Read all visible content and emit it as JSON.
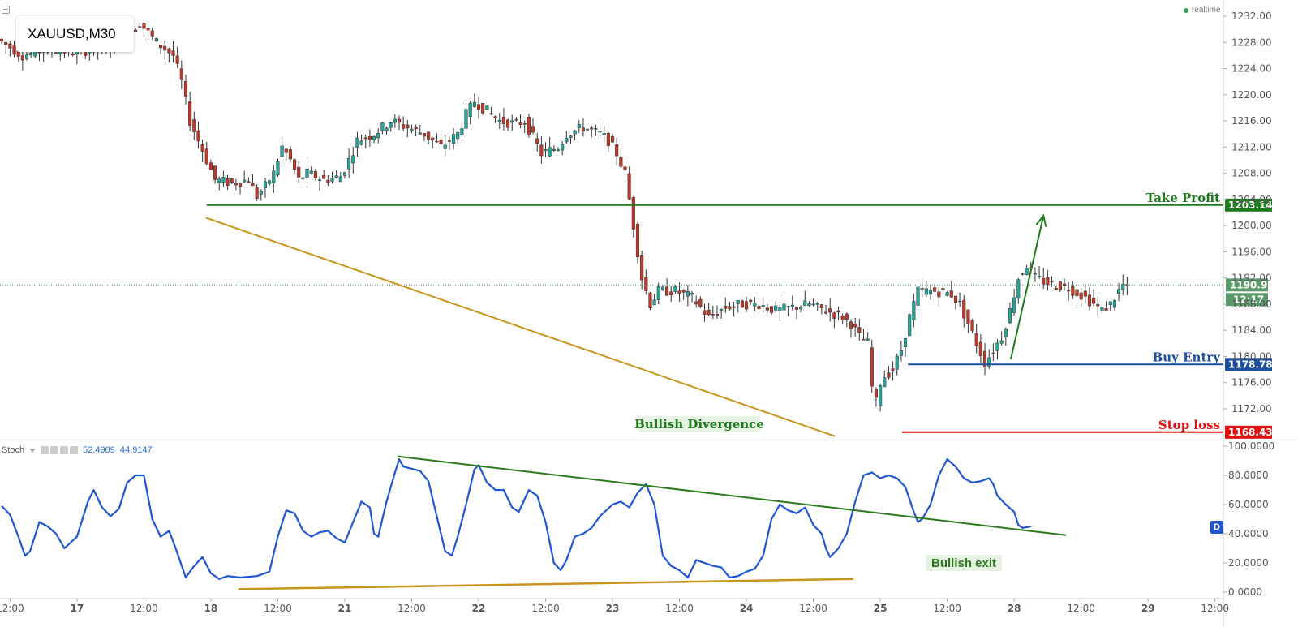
{
  "symbol": "XAUUSD,M30",
  "realtime_label": "realtime",
  "indicator": {
    "name": "Stoch",
    "values": [
      "52.4909",
      "44.9147"
    ],
    "badge": "D"
  },
  "colors": {
    "bull": "#26a69a",
    "bear": "#c0392b",
    "take_profit": "#1d7a1d",
    "buy_entry": "#1c4fa0",
    "stop_loss": "#e01010",
    "trendline": "#c8941a",
    "stoch_line": "#1f56d6",
    "stoch_trend": "#2a7a1a",
    "current_price": "#5a9a6a"
  },
  "annotations": {
    "take_profit": "Take Profit",
    "buy_entry": "Buy Entry",
    "stop_loss": "Stop loss",
    "bullish_divergence": "Bullish Divergence",
    "bullish_exit": "Bullish exit"
  },
  "chart_data": [
    {
      "type": "candlestick",
      "title": "XAUUSD,M30",
      "ylim": [
        1167,
        1234
      ],
      "y_ticks": [
        "1232.00",
        "1228.00",
        "1224.00",
        "1220.00",
        "1216.00",
        "1212.00",
        "1208.00",
        "1204.00",
        "1200.00",
        "1196.00",
        "1192.00",
        "1188.00",
        "1184.00",
        "1180.00",
        "1176.00",
        "1172.00"
      ],
      "x_ticks": [
        "12:00",
        "17",
        "12:00",
        "18",
        "12:00",
        "21",
        "12:00",
        "22",
        "12:00",
        "23",
        "12:00",
        "24",
        "12:00",
        "25",
        "12:00",
        "28",
        "12:00",
        "29",
        "12:00"
      ],
      "x_tick_times": [
        0,
        8,
        16,
        24,
        32,
        40,
        48,
        56,
        64,
        72,
        80,
        88,
        96,
        104,
        112,
        120,
        128,
        136,
        144
      ],
      "x_range": [
        -1.2,
        145
      ],
      "price_levels": [
        {
          "name": "take_profit",
          "value": "1203.14",
          "from_time": 23.5
        },
        {
          "name": "buy_entry",
          "value": "1178.78",
          "from_time": 107.3
        },
        {
          "name": "stop_loss",
          "value": "1168.43",
          "from_time": 106.6
        },
        {
          "name": "current_price",
          "value": "1190.93",
          "countdown": "12:17"
        }
      ],
      "price_path": [
        [
          -1,
          1228.5
        ],
        [
          2,
          1226
        ],
        [
          5,
          1227
        ],
        [
          8,
          1226.5
        ],
        [
          11,
          1227
        ],
        [
          14,
          1228
        ],
        [
          16,
          1231
        ],
        [
          18,
          1228
        ],
        [
          20,
          1226
        ],
        [
          21,
          1222
        ],
        [
          22,
          1216
        ],
        [
          23,
          1213
        ],
        [
          24,
          1210
        ],
        [
          25,
          1207
        ],
        [
          27,
          1206.5
        ],
        [
          29,
          1207
        ],
        [
          30,
          1204.5
        ],
        [
          31,
          1206
        ],
        [
          32,
          1208
        ],
        [
          33,
          1212
        ],
        [
          34,
          1210
        ],
        [
          35,
          1207
        ],
        [
          36,
          1208
        ],
        [
          38,
          1207
        ],
        [
          40,
          1207.5
        ],
        [
          41,
          1210
        ],
        [
          42,
          1213
        ],
        [
          44,
          1214
        ],
        [
          46,
          1216
        ],
        [
          48,
          1215
        ],
        [
          50,
          1214
        ],
        [
          52,
          1212
        ],
        [
          54,
          1214
        ],
        [
          55,
          1217
        ],
        [
          56,
          1219
        ],
        [
          57,
          1218
        ],
        [
          59,
          1216
        ],
        [
          61,
          1215.5
        ],
        [
          62,
          1216
        ],
        [
          64,
          1211
        ],
        [
          66,
          1212
        ],
        [
          67,
          1214
        ],
        [
          69,
          1215
        ],
        [
          71,
          1214
        ],
        [
          72,
          1213
        ],
        [
          73,
          1211
        ],
        [
          74,
          1208
        ],
        [
          75,
          1200
        ],
        [
          76,
          1192
        ],
        [
          77,
          1188
        ],
        [
          78,
          1190
        ],
        [
          80,
          1190
        ],
        [
          82,
          1189
        ],
        [
          84,
          1186
        ],
        [
          86,
          1187.5
        ],
        [
          88,
          1188
        ],
        [
          90,
          1188
        ],
        [
          92,
          1187
        ],
        [
          94,
          1187.5
        ],
        [
          96,
          1188
        ],
        [
          98,
          1187
        ],
        [
          100,
          1186
        ],
        [
          101,
          1185
        ],
        [
          102,
          1183
        ],
        [
          103,
          1182
        ],
        [
          103.6,
          1174
        ],
        [
          104,
          1173
        ],
        [
          104.5,
          1176
        ],
        [
          105,
          1177
        ],
        [
          106,
          1178
        ],
        [
          107,
          1181
        ],
        [
          108,
          1186
        ],
        [
          109,
          1190
        ],
        [
          111,
          1190
        ],
        [
          113,
          1189.5
        ],
        [
          114,
          1188
        ],
        [
          115,
          1185
        ],
        [
          116,
          1182
        ],
        [
          117,
          1179
        ],
        [
          118,
          1181
        ],
        [
          119,
          1183
        ],
        [
          120,
          1187
        ],
        [
          121,
          1192
        ],
        [
          122,
          1194
        ],
        [
          123,
          1192
        ],
        [
          125,
          1191
        ],
        [
          127,
          1190.5
        ],
        [
          129,
          1189
        ],
        [
          130,
          1188
        ],
        [
          131,
          1187
        ],
        [
          132,
          1188
        ],
        [
          133,
          1190
        ],
        [
          133.5,
          1190.93
        ]
      ],
      "candle_step": 0.5
    },
    {
      "type": "line",
      "title": "Stoch",
      "series": [
        {
          "name": "Stoch",
          "values": [
            [
              -1,
              59
            ],
            [
              0,
              53
            ],
            [
              1,
              38
            ],
            [
              1.8,
              25
            ],
            [
              2.4,
              28
            ],
            [
              3.5,
              48
            ],
            [
              4.5,
              45
            ],
            [
              5.5,
              40
            ],
            [
              6.5,
              30
            ],
            [
              8,
              38
            ],
            [
              9.3,
              62
            ],
            [
              10,
              70
            ],
            [
              11,
              58
            ],
            [
              12,
              52
            ],
            [
              13,
              57
            ],
            [
              14,
              75
            ],
            [
              15,
              80
            ],
            [
              16,
              80
            ],
            [
              17,
              50
            ],
            [
              18,
              38
            ],
            [
              19,
              42
            ],
            [
              19.8,
              30
            ],
            [
              21,
              10
            ],
            [
              22,
              18
            ],
            [
              23,
              24
            ],
            [
              24,
              13
            ],
            [
              25,
              9
            ],
            [
              26,
              11
            ],
            [
              27.5,
              10
            ],
            [
              29.5,
              11
            ],
            [
              31,
              14
            ],
            [
              32,
              38
            ],
            [
              33,
              56
            ],
            [
              34,
              54
            ],
            [
              35,
              42
            ],
            [
              36,
              38
            ],
            [
              37,
              41
            ],
            [
              38,
              42
            ],
            [
              39,
              37
            ],
            [
              40,
              34
            ],
            [
              41,
              48
            ],
            [
              42,
              62
            ],
            [
              43,
              58
            ],
            [
              43.5,
              40
            ],
            [
              44,
              38
            ],
            [
              45,
              62
            ],
            [
              46,
              82
            ],
            [
              46.5,
              91
            ],
            [
              47,
              86
            ],
            [
              49,
              83
            ],
            [
              50,
              76
            ],
            [
              51,
              52
            ],
            [
              52,
              28
            ],
            [
              52.8,
              25
            ],
            [
              53.5,
              38
            ],
            [
              54.5,
              60
            ],
            [
              55.5,
              84
            ],
            [
              56,
              87
            ],
            [
              57,
              75
            ],
            [
              58,
              70
            ],
            [
              59,
              70
            ],
            [
              60,
              58
            ],
            [
              60.8,
              55
            ],
            [
              62,
              70
            ],
            [
              63,
              66
            ],
            [
              64,
              48
            ],
            [
              65,
              20
            ],
            [
              65.8,
              15
            ],
            [
              66.5,
              22
            ],
            [
              67.5,
              38
            ],
            [
              68.5,
              40
            ],
            [
              69.5,
              44
            ],
            [
              70.5,
              52
            ],
            [
              72,
              60
            ],
            [
              73,
              62
            ],
            [
              74,
              58
            ],
            [
              75,
              68
            ],
            [
              76,
              74
            ],
            [
              77,
              60
            ],
            [
              78,
              25
            ],
            [
              79,
              18
            ],
            [
              80,
              15
            ],
            [
              81,
              10
            ],
            [
              82,
              22
            ],
            [
              83,
              20
            ],
            [
              84,
              18
            ],
            [
              85,
              17
            ],
            [
              86,
              10
            ],
            [
              87,
              11
            ],
            [
              88,
              14
            ],
            [
              89,
              16
            ],
            [
              90,
              25
            ],
            [
              91,
              50
            ],
            [
              92,
              60
            ],
            [
              93,
              56
            ],
            [
              94,
              54
            ],
            [
              95,
              58
            ],
            [
              96,
              46
            ],
            [
              97,
              40
            ],
            [
              97.5,
              30
            ],
            [
              98,
              24
            ],
            [
              99,
              30
            ],
            [
              100,
              40
            ],
            [
              101,
              62
            ],
            [
              102,
              80
            ],
            [
              103,
              82
            ],
            [
              104,
              78
            ],
            [
              105,
              80
            ],
            [
              106,
              78
            ],
            [
              107,
              72
            ],
            [
              108,
              55
            ],
            [
              108.5,
              48
            ],
            [
              109,
              50
            ],
            [
              110,
              60
            ],
            [
              111,
              80
            ],
            [
              112,
              91
            ],
            [
              113,
              86
            ],
            [
              114,
              78
            ],
            [
              115,
              75
            ],
            [
              116,
              76
            ],
            [
              117,
              78
            ],
            [
              117.5,
              74
            ],
            [
              118,
              66
            ],
            [
              119,
              60
            ],
            [
              120,
              55
            ],
            [
              120.5,
              46
            ],
            [
              121,
              44
            ],
            [
              122,
              45
            ]
          ]
        }
      ],
      "ylim": [
        -5,
        108
      ],
      "y_ticks": [
        "100.0000",
        "80.0000",
        "60.0000",
        "40.0000",
        "20.0000",
        "0.0000"
      ]
    }
  ],
  "drawings": {
    "price_downtrend": {
      "from": [
        23.4,
        1201.2
      ],
      "to": [
        98.6,
        1167.8
      ]
    },
    "take_profit_arrow": {
      "from": [
        119.6,
        1179.6
      ],
      "to": [
        123.5,
        1201.5
      ]
    },
    "stoch_upper_trend": {
      "from": [
        46.3,
        93
      ],
      "to": [
        126.2,
        39
      ]
    },
    "stoch_lower_trend": {
      "from": [
        27.3,
        2
      ],
      "to": [
        100.8,
        9
      ]
    }
  }
}
